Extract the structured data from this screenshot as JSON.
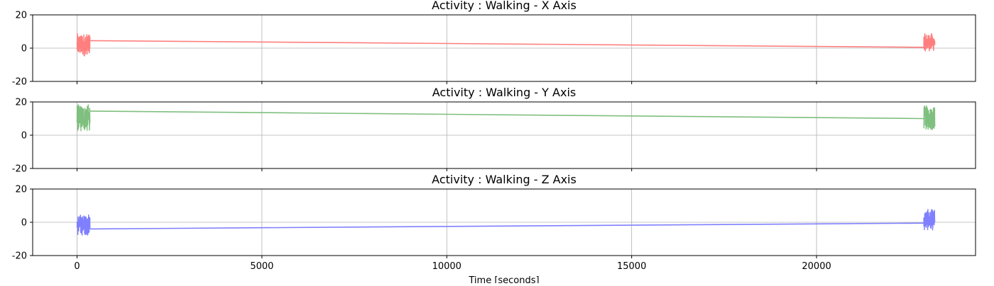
{
  "chart_data": [
    {
      "type": "line",
      "title": "Activity : Walking - X Axis",
      "color": "#ff7f7f",
      "ylim": [
        -20,
        20
      ],
      "yticks": [
        20,
        0,
        -20
      ],
      "xlim": [
        -1200,
        24300
      ],
      "grid": true,
      "clusters": [
        {
          "x_start": 0,
          "x_end": 350,
          "y_min": -5,
          "y_max": 9
        },
        {
          "x_start": 22900,
          "x_end": 23200,
          "y_min": -2,
          "y_max": 9
        }
      ],
      "trend": {
        "x": [
          350,
          22900
        ],
        "y": [
          4.5,
          0.5
        ]
      }
    },
    {
      "type": "line",
      "title": "Activity : Walking - Y Axis",
      "color": "#7fbf7f",
      "ylim": [
        -20,
        20
      ],
      "yticks": [
        20,
        0,
        -20
      ],
      "xlim": [
        -1200,
        24300
      ],
      "grid": true,
      "clusters": [
        {
          "x_start": 0,
          "x_end": 350,
          "y_min": 2,
          "y_max": 19
        },
        {
          "x_start": 22900,
          "x_end": 23200,
          "y_min": 3,
          "y_max": 18
        }
      ],
      "trend": {
        "x": [
          350,
          22900
        ],
        "y": [
          14.5,
          10
        ]
      }
    },
    {
      "type": "line",
      "title": "Activity : Walking - Z Axis",
      "color": "#7f7fff",
      "ylim": [
        -20,
        20
      ],
      "yticks": [
        20,
        0,
        -20
      ],
      "xlim": [
        -1200,
        24300
      ],
      "grid": true,
      "clusters": [
        {
          "x_start": 0,
          "x_end": 350,
          "y_min": -8,
          "y_max": 5
        },
        {
          "x_start": 22900,
          "x_end": 23200,
          "y_min": -5,
          "y_max": 8
        }
      ],
      "trend": {
        "x": [
          350,
          22900
        ],
        "y": [
          -4,
          -0.5
        ]
      }
    }
  ],
  "xticks": [
    0,
    5000,
    10000,
    15000,
    20000
  ],
  "xtick_labels": [
    "0",
    "5000",
    "10000",
    "15000",
    "20000"
  ],
  "xlabel": "Time [seconds]"
}
